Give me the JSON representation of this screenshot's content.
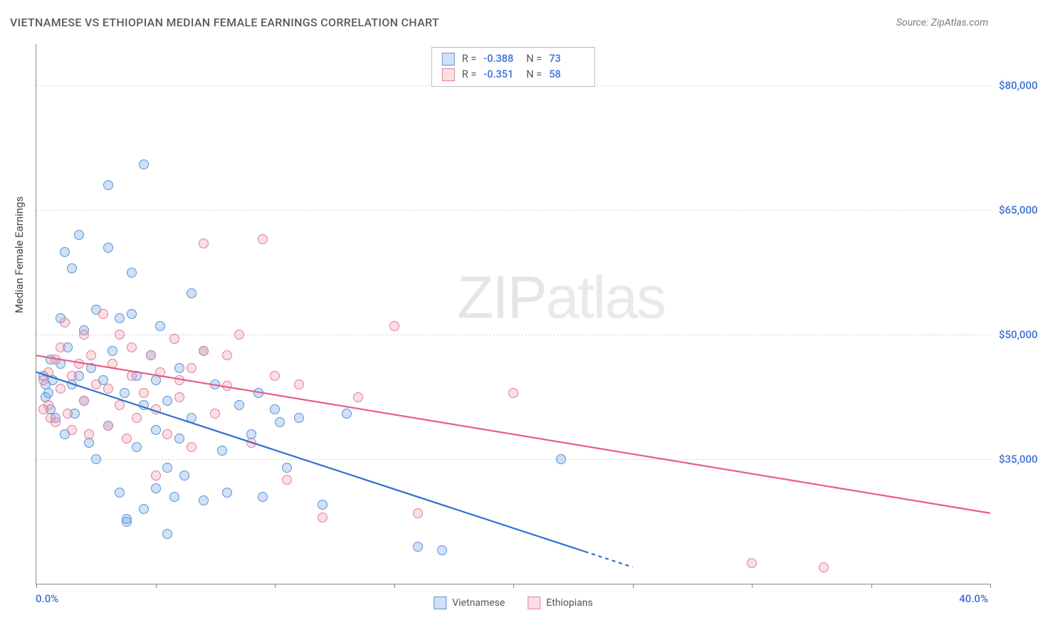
{
  "title": "VIETNAMESE VS ETHIOPIAN MEDIAN FEMALE EARNINGS CORRELATION CHART",
  "source": "Source: ZipAtlas.com",
  "watermark_bold": "ZIP",
  "watermark_thin": "atlas",
  "y_axis_label": "Median Female Earnings",
  "x_min_label": "0.0%",
  "x_max_label": "40.0%",
  "chart": {
    "type": "scatter",
    "xlim": [
      0,
      40
    ],
    "ylim": [
      20000,
      85000
    ],
    "y_ticks": [
      35000,
      50000,
      65000,
      80000
    ],
    "y_tick_labels": [
      "$35,000",
      "$50,000",
      "$65,000",
      "$80,000"
    ],
    "x_ticks": [
      0,
      5,
      10,
      15,
      20,
      25,
      30,
      35,
      40
    ],
    "background_color": "#ffffff",
    "grid_color": "#d8d8d8",
    "marker_radius": 7,
    "marker_stroke_width": 1.2,
    "series": [
      {
        "key": "vietnamese",
        "label": "Vietnamese",
        "fill": "rgba(120,170,230,0.35)",
        "stroke": "#5a93d6",
        "line_color": "#2f6fd0",
        "line_width": 2.2,
        "R_label": "R =",
        "R": "-0.388",
        "N_label": "N =",
        "N": "73",
        "trend": {
          "x1": 0,
          "y1": 45500,
          "x2": 25,
          "y2": 22000,
          "dash_from_x": 23
        },
        "points": [
          [
            0.3,
            45000
          ],
          [
            0.4,
            44000
          ],
          [
            0.4,
            42500
          ],
          [
            0.5,
            43000
          ],
          [
            0.6,
            47000
          ],
          [
            0.6,
            41000
          ],
          [
            0.7,
            44500
          ],
          [
            0.8,
            40000
          ],
          [
            1.0,
            46500
          ],
          [
            1.0,
            52000
          ],
          [
            1.2,
            38000
          ],
          [
            1.2,
            60000
          ],
          [
            1.3,
            48500
          ],
          [
            1.5,
            44000
          ],
          [
            1.5,
            58000
          ],
          [
            1.6,
            40500
          ],
          [
            1.8,
            62000
          ],
          [
            1.8,
            45000
          ],
          [
            2.0,
            42000
          ],
          [
            2.0,
            50500
          ],
          [
            2.2,
            37000
          ],
          [
            2.3,
            46000
          ],
          [
            2.5,
            53000
          ],
          [
            2.5,
            35000
          ],
          [
            2.8,
            44500
          ],
          [
            3.0,
            60500
          ],
          [
            3.0,
            39000
          ],
          [
            3.0,
            68000
          ],
          [
            3.2,
            48000
          ],
          [
            3.5,
            52000
          ],
          [
            3.5,
            31000
          ],
          [
            3.7,
            43000
          ],
          [
            3.8,
            27500
          ],
          [
            3.8,
            27800
          ],
          [
            4.0,
            52500
          ],
          [
            4.0,
            57500
          ],
          [
            4.2,
            36500
          ],
          [
            4.2,
            45000
          ],
          [
            4.5,
            41500
          ],
          [
            4.5,
            29000
          ],
          [
            4.5,
            70500
          ],
          [
            4.8,
            47500
          ],
          [
            5.0,
            38500
          ],
          [
            5.0,
            31500
          ],
          [
            5.0,
            44500
          ],
          [
            5.2,
            51000
          ],
          [
            5.5,
            34000
          ],
          [
            5.5,
            42000
          ],
          [
            5.5,
            26000
          ],
          [
            5.8,
            30500
          ],
          [
            6.0,
            46000
          ],
          [
            6.0,
            37500
          ],
          [
            6.2,
            33000
          ],
          [
            6.5,
            55000
          ],
          [
            6.5,
            40000
          ],
          [
            7.0,
            48000
          ],
          [
            7.0,
            30000
          ],
          [
            7.5,
            44000
          ],
          [
            7.8,
            36000
          ],
          [
            8.0,
            31000
          ],
          [
            8.5,
            41500
          ],
          [
            9.0,
            38000
          ],
          [
            9.3,
            43000
          ],
          [
            9.5,
            30500
          ],
          [
            10.0,
            41000
          ],
          [
            10.2,
            39500
          ],
          [
            10.5,
            34000
          ],
          [
            11.0,
            40000
          ],
          [
            12.0,
            29500
          ],
          [
            13.0,
            40500
          ],
          [
            16.0,
            24500
          ],
          [
            17.0,
            24000
          ],
          [
            22.0,
            35000
          ]
        ]
      },
      {
        "key": "ethiopians",
        "label": "Ethiopians",
        "fill": "rgba(240,150,170,0.30)",
        "stroke": "#e07f9a",
        "line_color": "#e75d8a",
        "line_width": 2.2,
        "R_label": "R =",
        "R": "-0.351",
        "N_label": "N =",
        "N": "58",
        "trend": {
          "x1": 0,
          "y1": 47500,
          "x2": 40,
          "y2": 28500
        },
        "points": [
          [
            0.3,
            44500
          ],
          [
            0.3,
            41000
          ],
          [
            0.5,
            45500
          ],
          [
            0.5,
            41500
          ],
          [
            0.6,
            40000
          ],
          [
            0.8,
            47000
          ],
          [
            0.8,
            39500
          ],
          [
            1.0,
            43500
          ],
          [
            1.0,
            48500
          ],
          [
            1.2,
            51500
          ],
          [
            1.3,
            40500
          ],
          [
            1.5,
            45000
          ],
          [
            1.5,
            38500
          ],
          [
            1.8,
            46500
          ],
          [
            2.0,
            50000
          ],
          [
            2.0,
            42000
          ],
          [
            2.2,
            38000
          ],
          [
            2.3,
            47500
          ],
          [
            2.5,
            44000
          ],
          [
            2.8,
            52500
          ],
          [
            3.0,
            43500
          ],
          [
            3.0,
            39000
          ],
          [
            3.2,
            46500
          ],
          [
            3.5,
            41500
          ],
          [
            3.5,
            50000
          ],
          [
            3.8,
            37500
          ],
          [
            4.0,
            45000
          ],
          [
            4.0,
            48500
          ],
          [
            4.2,
            40000
          ],
          [
            4.5,
            43000
          ],
          [
            4.8,
            47500
          ],
          [
            5.0,
            41000
          ],
          [
            5.0,
            33000
          ],
          [
            5.2,
            45500
          ],
          [
            5.5,
            38000
          ],
          [
            5.8,
            49500
          ],
          [
            6.0,
            42500
          ],
          [
            6.0,
            44500
          ],
          [
            6.5,
            46000
          ],
          [
            6.5,
            36500
          ],
          [
            7.0,
            48000
          ],
          [
            7.0,
            61000
          ],
          [
            7.5,
            40500
          ],
          [
            8.0,
            47500
          ],
          [
            8.0,
            43800
          ],
          [
            8.5,
            50000
          ],
          [
            9.0,
            37000
          ],
          [
            9.5,
            61500
          ],
          [
            10.0,
            45000
          ],
          [
            10.5,
            32500
          ],
          [
            11.0,
            44000
          ],
          [
            12.0,
            28000
          ],
          [
            13.5,
            42500
          ],
          [
            15.0,
            51000
          ],
          [
            16.0,
            28500
          ],
          [
            20.0,
            43000
          ],
          [
            30.0,
            22500
          ],
          [
            33.0,
            22000
          ]
        ]
      }
    ]
  }
}
